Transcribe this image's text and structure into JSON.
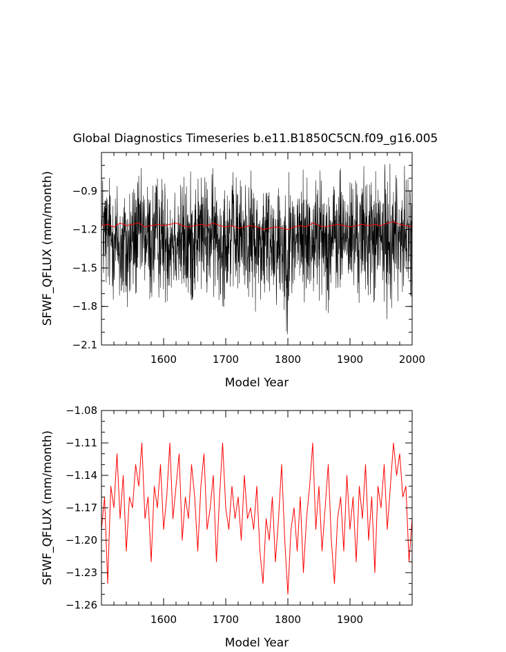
{
  "chart_data": [
    {
      "type": "line",
      "title": "Global Diagnostics Timeseries b.e11.B1850C5CN.f09_g16.005",
      "xlabel": "Model Year",
      "ylabel": "SFWF_QFLUX (mm/month)",
      "xlim": [
        1500,
        2000
      ],
      "ylim": [
        -2.1,
        -0.6
      ],
      "xticks": [
        "1600",
        "1700",
        "1800",
        "1900",
        "2000"
      ],
      "yticks": [
        "-0.9",
        "-1.2",
        "-1.5",
        "-1.8",
        "-2.1"
      ],
      "grid": false,
      "series": [
        {
          "color": "#000000",
          "note": "monthly values, year 1500-2000",
          "x": [
            1500,
            1510,
            1520,
            1530,
            1540,
            1550,
            1560,
            1570,
            1580,
            1590,
            1600,
            1610,
            1620,
            1630,
            1640,
            1650,
            1660,
            1670,
            1680,
            1690,
            1700,
            1710,
            1720,
            1730,
            1740,
            1750,
            1760,
            1770,
            1780,
            1790,
            1800,
            1810,
            1820,
            1830,
            1840,
            1850,
            1860,
            1870,
            1880,
            1890,
            1900,
            1910,
            1920,
            1930,
            1940,
            1950,
            1960,
            1970,
            1980,
            1990,
            2000
          ],
          "upper": [
            -0.68,
            -0.72,
            -0.75,
            -0.74,
            -0.78,
            -0.73,
            -0.7,
            -0.76,
            -0.74,
            -0.72,
            -0.75,
            -0.71,
            -0.74,
            -0.72,
            -0.76,
            -0.73,
            -0.71,
            -0.75,
            -0.72,
            -0.74,
            -0.71,
            -0.76,
            -0.73,
            -0.75,
            -0.74,
            -0.77,
            -0.74,
            -0.72,
            -0.75,
            -0.73,
            -0.72,
            -0.74,
            -0.73,
            -0.71,
            -0.72,
            -0.74,
            -0.72,
            -0.7,
            -0.74,
            -0.71,
            -0.73,
            -0.72,
            -0.7,
            -0.73,
            -0.71,
            -0.72,
            -0.68,
            -0.7,
            -0.69,
            -0.71,
            -0.72
          ],
          "lower": [
            -1.7,
            -1.8,
            -1.75,
            -1.95,
            -2.0,
            -1.85,
            -1.78,
            -1.72,
            -1.9,
            -1.75,
            -1.8,
            -1.82,
            -1.76,
            -1.85,
            -1.92,
            -1.78,
            -1.72,
            -1.8,
            -1.75,
            -1.85,
            -1.78,
            -1.72,
            -1.82,
            -1.76,
            -1.8,
            -1.85,
            -1.88,
            -1.8,
            -1.82,
            -1.9,
            -2.02,
            -1.8,
            -1.78,
            -1.85,
            -1.8,
            -1.75,
            -1.82,
            -1.88,
            -1.8,
            -1.75,
            -1.78,
            -1.82,
            -1.8,
            -1.76,
            -1.86,
            -1.8,
            -1.9,
            -1.78,
            -1.75,
            -1.8,
            -1.76
          ]
        },
        {
          "color": "#ff0000",
          "note": "annual mean",
          "x": [
            1500,
            1510,
            1520,
            1530,
            1540,
            1550,
            1560,
            1570,
            1580,
            1590,
            1600,
            1610,
            1620,
            1630,
            1640,
            1650,
            1660,
            1670,
            1680,
            1690,
            1700,
            1710,
            1720,
            1730,
            1740,
            1750,
            1760,
            1770,
            1780,
            1790,
            1800,
            1810,
            1820,
            1830,
            1840,
            1850,
            1860,
            1870,
            1880,
            1890,
            1900,
            1910,
            1920,
            1930,
            1940,
            1950,
            1960,
            1970,
            1980,
            1990,
            2000
          ],
          "values": [
            -1.17,
            -1.16,
            -1.18,
            -1.15,
            -1.17,
            -1.16,
            -1.15,
            -1.18,
            -1.17,
            -1.16,
            -1.17,
            -1.16,
            -1.15,
            -1.17,
            -1.18,
            -1.17,
            -1.16,
            -1.17,
            -1.15,
            -1.17,
            -1.18,
            -1.17,
            -1.19,
            -1.18,
            -1.17,
            -1.18,
            -1.2,
            -1.19,
            -1.18,
            -1.19,
            -1.2,
            -1.18,
            -1.17,
            -1.18,
            -1.15,
            -1.17,
            -1.18,
            -1.17,
            -1.16,
            -1.17,
            -1.18,
            -1.17,
            -1.16,
            -1.17,
            -1.16,
            -1.17,
            -1.15,
            -1.14,
            -1.16,
            -1.17,
            -1.18
          ]
        }
      ]
    },
    {
      "type": "line",
      "title": "",
      "xlabel": "Model Year",
      "ylabel": "SFWF_QFLUX (mm/month)",
      "xlim": [
        1500,
        2000
      ],
      "ylim": [
        -1.26,
        -1.08
      ],
      "xticks": [
        "1600",
        "1700",
        "1800",
        "1900"
      ],
      "yticks": [
        "-1.08",
        "-1.11",
        "-1.14",
        "-1.17",
        "-1.20",
        "-1.23",
        "-1.26"
      ],
      "grid": false,
      "series": [
        {
          "color": "#ff0000",
          "x": [
            1500,
            1505,
            1510,
            1515,
            1520,
            1525,
            1530,
            1535,
            1540,
            1545,
            1550,
            1555,
            1560,
            1565,
            1570,
            1575,
            1580,
            1585,
            1590,
            1595,
            1600,
            1605,
            1610,
            1615,
            1620,
            1625,
            1630,
            1635,
            1640,
            1645,
            1650,
            1655,
            1660,
            1665,
            1670,
            1675,
            1680,
            1685,
            1690,
            1695,
            1700,
            1705,
            1710,
            1715,
            1720,
            1725,
            1730,
            1735,
            1740,
            1745,
            1750,
            1755,
            1760,
            1765,
            1770,
            1775,
            1780,
            1785,
            1790,
            1795,
            1800,
            1805,
            1810,
            1815,
            1820,
            1825,
            1830,
            1835,
            1840,
            1845,
            1850,
            1855,
            1860,
            1865,
            1870,
            1875,
            1880,
            1885,
            1890,
            1895,
            1900,
            1905,
            1910,
            1915,
            1920,
            1925,
            1930,
            1935,
            1940,
            1945,
            1950,
            1955,
            1960,
            1965,
            1970,
            1975,
            1980,
            1985,
            1990,
            1995,
            2000
          ],
          "values": [
            -1.19,
            -1.16,
            -1.24,
            -1.15,
            -1.17,
            -1.12,
            -1.18,
            -1.14,
            -1.21,
            -1.16,
            -1.17,
            -1.13,
            -1.15,
            -1.11,
            -1.18,
            -1.16,
            -1.22,
            -1.15,
            -1.17,
            -1.13,
            -1.19,
            -1.16,
            -1.11,
            -1.18,
            -1.15,
            -1.12,
            -1.2,
            -1.16,
            -1.18,
            -1.13,
            -1.16,
            -1.21,
            -1.15,
            -1.12,
            -1.19,
            -1.17,
            -1.14,
            -1.22,
            -1.16,
            -1.11,
            -1.17,
            -1.19,
            -1.15,
            -1.18,
            -1.16,
            -1.2,
            -1.14,
            -1.18,
            -1.17,
            -1.19,
            -1.15,
            -1.21,
            -1.24,
            -1.18,
            -1.2,
            -1.16,
            -1.22,
            -1.18,
            -1.13,
            -1.2,
            -1.25,
            -1.19,
            -1.17,
            -1.21,
            -1.16,
            -1.23,
            -1.18,
            -1.15,
            -1.11,
            -1.19,
            -1.15,
            -1.21,
            -1.17,
            -1.13,
            -1.2,
            -1.24,
            -1.18,
            -1.16,
            -1.21,
            -1.14,
            -1.19,
            -1.16,
            -1.22,
            -1.15,
            -1.18,
            -1.13,
            -1.2,
            -1.16,
            -1.23,
            -1.15,
            -1.17,
            -1.13,
            -1.19,
            -1.15,
            -1.11,
            -1.14,
            -1.12,
            -1.16,
            -1.15,
            -1.22,
            -1.18
          ]
        }
      ]
    }
  ]
}
